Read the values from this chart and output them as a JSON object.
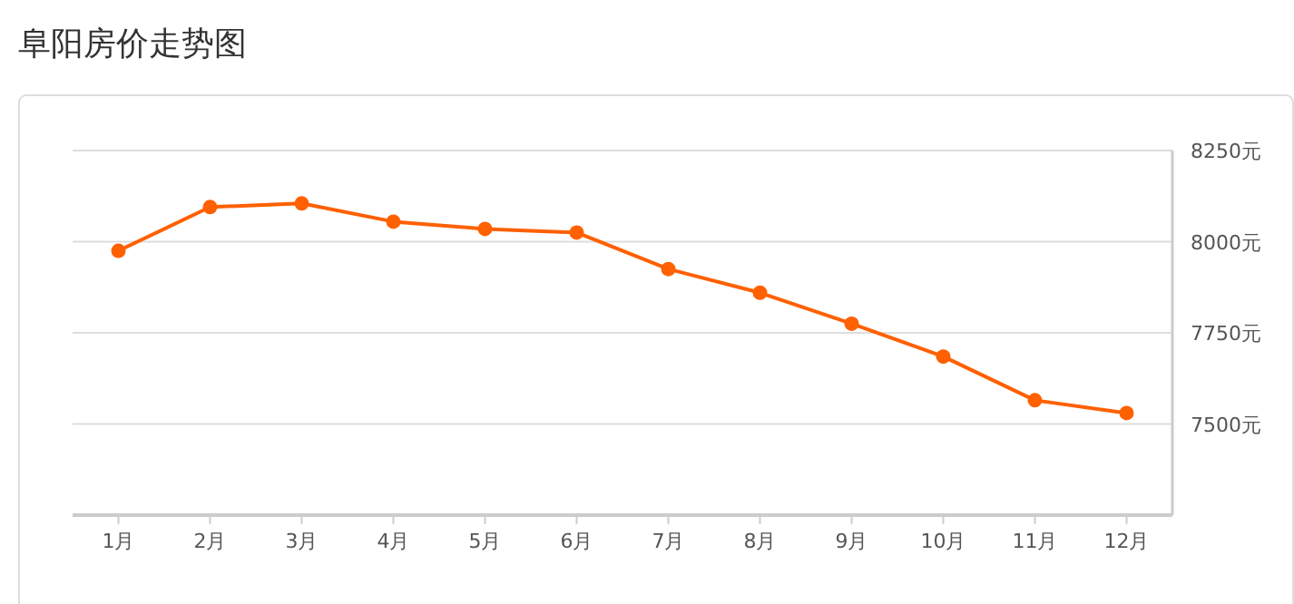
{
  "chart_data": {
    "type": "line",
    "title": "阜阳房价走势图",
    "categories": [
      "1月",
      "2月",
      "3月",
      "4月",
      "5月",
      "6月",
      "7月",
      "8月",
      "9月",
      "10月",
      "11月",
      "12月"
    ],
    "series": [
      {
        "color": "#ff6000",
        "values": [
          7975,
          8095,
          8105,
          8055,
          8035,
          8025,
          7925,
          7860,
          7775,
          7685,
          7565,
          7530
        ]
      }
    ],
    "ylim": [
      7250,
      8250
    ],
    "yticks": [
      {
        "value": 7500,
        "label": "7500元"
      },
      {
        "value": 7750,
        "label": "7750元"
      },
      {
        "value": 8000,
        "label": "8000元"
      },
      {
        "value": 8250,
        "label": "8250元"
      }
    ],
    "grid": "y",
    "marker": "circle",
    "line_style": "solid"
  }
}
